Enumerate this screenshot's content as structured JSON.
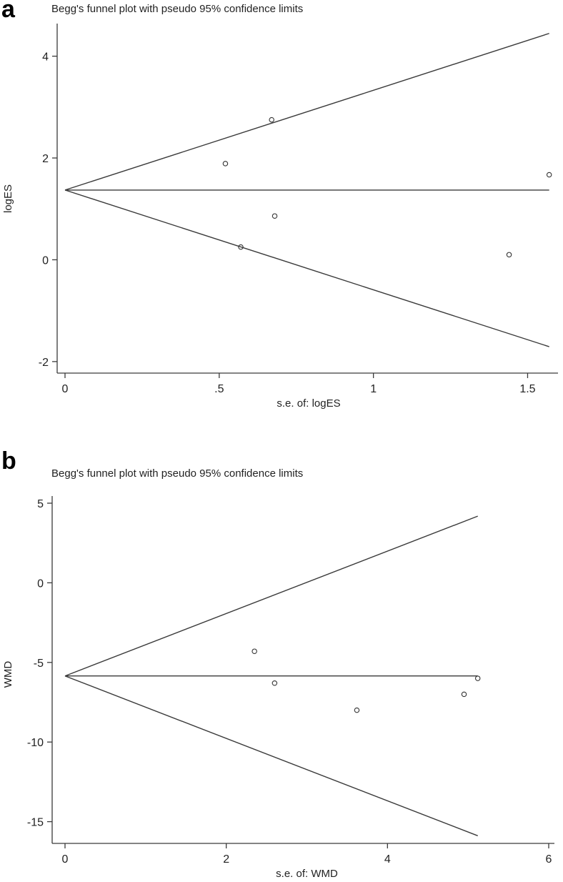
{
  "panels": [
    {
      "letter": "a",
      "chart_data": {
        "type": "scatter",
        "title": "Begg's funnel plot with pseudo 95% confidence limits",
        "xlabel": "s.e. of: logES",
        "ylabel": "logES",
        "xlim": [
          0,
          1.58
        ],
        "ylim": [
          -2.1,
          4.5
        ],
        "xticks": [
          0,
          0.5,
          1,
          1.5
        ],
        "xtick_labels": [
          "0",
          ".5",
          "1",
          "1.5"
        ],
        "yticks": [
          -2,
          0,
          2,
          4
        ],
        "ytick_labels": [
          "-2",
          "0",
          "2",
          "4"
        ],
        "grid": false,
        "pooled_estimate": 1.37,
        "funnel_se_max": 1.57,
        "points": [
          {
            "x": 0.52,
            "y": 1.89
          },
          {
            "x": 0.67,
            "y": 2.75
          },
          {
            "x": 0.57,
            "y": 0.25
          },
          {
            "x": 0.68,
            "y": 0.86
          },
          {
            "x": 1.44,
            "y": 0.1
          },
          {
            "x": 1.57,
            "y": 1.67
          }
        ]
      }
    },
    {
      "letter": "b",
      "chart_data": {
        "type": "scatter",
        "title": "Begg's funnel plot with pseudo 95% confidence limits",
        "xlabel": "s.e. of: WMD",
        "ylabel": "WMD",
        "xlim": [
          0,
          6
        ],
        "ylim": [
          -16.5,
          5
        ],
        "xticks": [
          0,
          2,
          4,
          6
        ],
        "xtick_labels": [
          "0",
          "2",
          "4",
          "6"
        ],
        "yticks": [
          -15,
          -10,
          -5,
          0,
          5
        ],
        "ytick_labels": [
          "-15",
          "-10",
          "-5",
          "0",
          "5"
        ],
        "grid": false,
        "pooled_estimate": -5.85,
        "funnel_se_max": 5.12,
        "points": [
          {
            "x": 2.35,
            "y": -4.3
          },
          {
            "x": 2.6,
            "y": -6.3
          },
          {
            "x": 3.62,
            "y": -8.0
          },
          {
            "x": 4.95,
            "y": -7.0
          },
          {
            "x": 5.12,
            "y": -6.0
          }
        ]
      }
    }
  ]
}
